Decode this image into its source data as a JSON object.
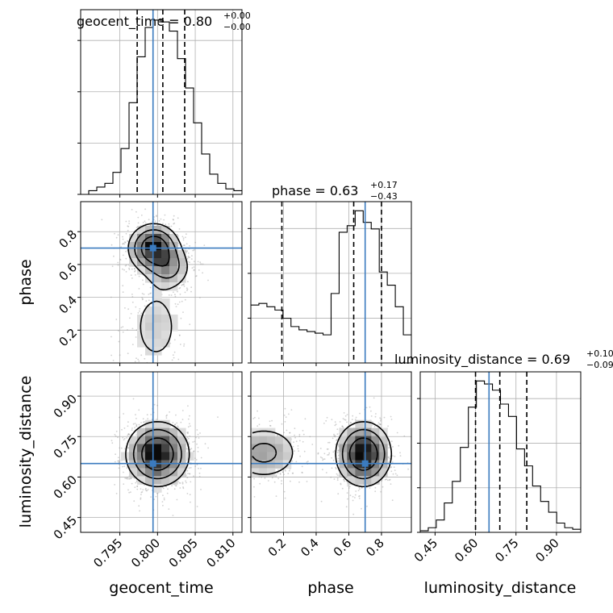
{
  "chart_data": {
    "type": "corner",
    "parameters": [
      {
        "name": "geocent_time",
        "label": "geocent_time",
        "title_prefix": "geocent_time = 0.80",
        "title_sup": "+0.00",
        "title_sub": "−0.00",
        "range": [
          0.7898,
          0.8112
        ],
        "ticks": [
          0.795,
          0.8,
          0.805,
          0.81
        ],
        "tick_labels": [
          "0.795",
          "0.800",
          "0.805",
          "0.810"
        ],
        "quantiles": [
          0.7973,
          0.8007,
          0.8036
        ],
        "truth": 0.7994,
        "hist": {
          "edges_start": 0.7898,
          "bin_width": 0.00107,
          "counts": [
            0,
            2,
            4,
            6,
            12,
            25,
            50,
            75,
            91,
            95,
            94,
            89,
            74,
            58,
            39,
            22,
            11,
            6,
            3,
            2
          ]
        }
      },
      {
        "name": "phase",
        "label": "phase",
        "title_prefix": "phase = 0.63",
        "title_sup": "+0.17",
        "title_sub": "−0.43",
        "range": [
          0.0,
          0.983
        ],
        "ticks": [
          0.2,
          0.4,
          0.6,
          0.8
        ],
        "tick_labels": [
          "0.2",
          "0.4",
          "0.6",
          "0.8"
        ],
        "quantiles": [
          0.19,
          0.63,
          0.8
        ],
        "truth": 0.7,
        "hist": {
          "edges_start": 0.0,
          "bin_width": 0.04915,
          "counts": [
            35,
            36,
            34,
            32,
            27,
            22,
            20,
            19,
            18,
            17,
            42,
            79,
            83,
            92,
            85,
            81,
            55,
            47,
            34,
            17
          ]
        }
      },
      {
        "name": "luminosity_distance",
        "label": "luminosity_distance",
        "title_prefix": "luminosity_distance = 0.69",
        "title_sup": "+0.10",
        "title_sub": "−0.09",
        "range": [
          0.395,
          0.99
        ],
        "ticks": [
          0.45,
          0.6,
          0.75,
          0.9
        ],
        "tick_labels": [
          "0.45",
          "0.60",
          "0.75",
          "0.90"
        ],
        "quantiles": [
          0.6,
          0.69,
          0.79
        ],
        "truth": 0.65,
        "hist": {
          "edges_start": 0.395,
          "bin_width": 0.02975,
          "counts": [
            1,
            3,
            8,
            19,
            33,
            55,
            81,
            98,
            96,
            92,
            83,
            75,
            54,
            43,
            30,
            20,
            13,
            6,
            3,
            2
          ]
        }
      }
    ],
    "pairs": [
      {
        "x": "geocent_time",
        "y": "phase",
        "modes": [
          {
            "x": 0.7995,
            "y": 0.7,
            "sx": 0.0017,
            "sy": 0.075,
            "w": 0.62
          },
          {
            "x": 0.8015,
            "y": 0.58,
            "sx": 0.0016,
            "sy": 0.07,
            "w": 0.25
          },
          {
            "x": 0.7998,
            "y": 0.22,
            "sx": 0.0023,
            "sy": 0.17,
            "w": 0.13
          }
        ]
      },
      {
        "x": "geocent_time",
        "y": "luminosity_distance",
        "modes": [
          {
            "x": 0.8,
            "y": 0.685,
            "sx": 0.0021,
            "sy": 0.06,
            "w": 1.0
          }
        ]
      },
      {
        "x": "phase",
        "y": "luminosity_distance",
        "modes": [
          {
            "x": 0.69,
            "y": 0.685,
            "sx": 0.085,
            "sy": 0.06,
            "w": 0.72
          },
          {
            "x": 0.08,
            "y": 0.69,
            "sx": 0.12,
            "sy": 0.055,
            "w": 0.28
          }
        ]
      }
    ],
    "truth_color": "#3b7bbf",
    "contour_levels": [
      "1σ",
      "1.5σ",
      "2σ"
    ],
    "grid": true
  }
}
